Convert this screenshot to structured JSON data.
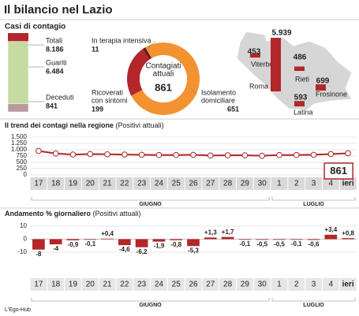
{
  "header": {
    "title": "Il bilancio nel Lazio"
  },
  "cases": {
    "title": "Casi di contagio",
    "color": "#b3262a",
    "total": {
      "label": "Totali",
      "value": 8186,
      "value_label": "8.186"
    },
    "segments": [
      {
        "label": "Guariti",
        "value": 6484,
        "value_label": "6.484",
        "color": "#c6dba1"
      },
      {
        "label": "Deceduti",
        "value": 841,
        "color": "#b89a9d"
      }
    ]
  },
  "donut": {
    "center_label": [
      "Contagiati",
      "attuali"
    ],
    "total": 861,
    "segments": [
      {
        "label": [
          "Isolamento",
          "domiciliare"
        ],
        "value": 651,
        "color": "#f39230"
      },
      {
        "label": [
          "Ricoverati",
          "con sintomi"
        ],
        "value": 199,
        "color": "#b3262a"
      },
      {
        "label": [
          "In terapia intensiva"
        ],
        "value": 11,
        "color": "#5e1416"
      }
    ]
  },
  "map": {
    "color": "#b3262a",
    "provinces": [
      {
        "name": "Viterbo",
        "value": 453
      },
      {
        "name": "Rieti",
        "value": 486
      },
      {
        "name": "Roma",
        "value": 5939,
        "value_label": "5.939"
      },
      {
        "name": "Latina",
        "value": 593
      },
      {
        "name": "Frosinone",
        "value": 699
      }
    ]
  },
  "chart_data": [
    {
      "type": "line",
      "title": "Il trend dei contagi nella regione",
      "subtitle": "(Positivi attuali)",
      "groups": [
        {
          "label": "GIUGNO",
          "categories": [
            "17",
            "18",
            "19",
            "20",
            "21",
            "22",
            "23",
            "24",
            "25",
            "26",
            "27",
            "28",
            "29",
            "30"
          ]
        },
        {
          "label": "LUGLIO",
          "categories": [
            "1",
            "2",
            "3",
            "4",
            "ieri"
          ]
        }
      ],
      "values": [
        950,
        850,
        810,
        830,
        820,
        810,
        800,
        790,
        790,
        800,
        770,
        780,
        780,
        760,
        790,
        790,
        800,
        830,
        861
      ],
      "color": "#b3262a",
      "ylim": [
        0,
        1500
      ],
      "yticks": [
        0,
        250,
        500,
        750,
        {
          "value": 1000,
          "label": "1.000"
        },
        {
          "value": 1250,
          "label": "1.250"
        },
        {
          "value": 1500,
          "label": "1.500"
        }
      ],
      "grid": true
    },
    {
      "type": "bar",
      "title": "Andamento % giornaliero",
      "subtitle": "(Positivi attuali)",
      "groups": [
        {
          "label": "GIUGNO",
          "categories": [
            "17",
            "18",
            "19",
            "20",
            "21",
            "22",
            "23",
            "24",
            "25",
            "26",
            "27",
            "28",
            "29",
            "30"
          ]
        },
        {
          "label": "LUGLIO",
          "categories": [
            "1",
            "2",
            "3",
            "4",
            "ieri"
          ]
        }
      ],
      "values": [
        -8,
        -4,
        -0.9,
        -0.1,
        0.4,
        -4.6,
        -6.2,
        -1.9,
        -0.8,
        -5.3,
        1.3,
        1.7,
        -0.1,
        -0.5,
        -0.5,
        -0.1,
        -0.6,
        3.4,
        0.8
      ],
      "value_labels": [
        "-8",
        "-4",
        "-0,9",
        "-0,1",
        "+0,4",
        "-4,6",
        "-6,2",
        "-1,9",
        "-0,8",
        "-5,3",
        "+1,3",
        "+1,7",
        "-0,1",
        "-0,5",
        "-0,5",
        "-0,1",
        "-0,6",
        "+3,4",
        "+0,8"
      ],
      "color": "#b3262a",
      "ylim": [
        -10,
        10
      ],
      "yticks": [
        -10,
        0,
        10
      ],
      "grid": true
    }
  ],
  "footer": {
    "source": "L'Ego-Hub"
  }
}
